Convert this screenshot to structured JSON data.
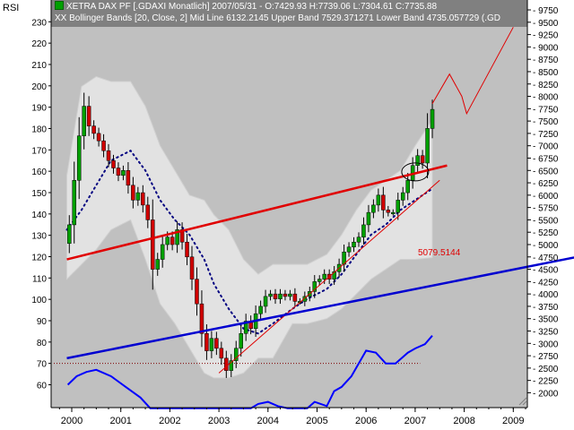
{
  "header": {
    "panel_label": "RSI",
    "title_line": "XETRA DAX PF [.GDAXI  Monatlich] 2007/05/31 - O:7429.93 H:7739.06 L:7304.61 C:7735.88",
    "bollinger_line": "XX Bollinger Bands [20, Close, 2] Mid Line 6132.2145  Upper Band 7529.371271  Lower Band 4735.057729  (.GD"
  },
  "colors": {
    "plot_bg": "#c0c0c0",
    "band_fill": "#e2e2e2",
    "candle_up": "#00a000",
    "candle_down": "#d00000",
    "midline": "#000080",
    "trend_red": "#e00000",
    "trend_blue": "#0000d0",
    "rsi_line": "#0000ff"
  },
  "chart_data": {
    "type": "candlestick",
    "x_ticks": [
      "2000",
      "2001",
      "2002",
      "2003",
      "2004",
      "2005",
      "2006",
      "2007",
      "2008",
      "2009"
    ],
    "right_axis_ticks": [
      2000,
      2250,
      2500,
      2750,
      3000,
      3250,
      3500,
      3750,
      4000,
      4250,
      4500,
      4750,
      5000,
      5250,
      5500,
      5750,
      6000,
      6250,
      6500,
      6750,
      7000,
      7250,
      7500,
      7750,
      8000,
      8250,
      8500,
      8750,
      9000,
      9250,
      9500,
      9750
    ],
    "left_axis_ticks": [
      60,
      70,
      80,
      90,
      100,
      110,
      120,
      130,
      140,
      150,
      160,
      170,
      180,
      190,
      200,
      210,
      220,
      230
    ],
    "price_ylim": [
      1700,
      9950
    ],
    "rsi_ylim": [
      49.3,
      240.2
    ],
    "annotation": "5079.5144",
    "closes": [
      {
        "t": 1999.95,
        "v": 5400
      },
      {
        "t": 2000.05,
        "v": 6300
      },
      {
        "t": 2000.15,
        "v": 7200
      },
      {
        "t": 2000.25,
        "v": 7800
      },
      {
        "t": 2000.35,
        "v": 7400
      },
      {
        "t": 2000.45,
        "v": 7250
      },
      {
        "t": 2000.55,
        "v": 7100
      },
      {
        "t": 2000.65,
        "v": 6900
      },
      {
        "t": 2000.75,
        "v": 6700
      },
      {
        "t": 2000.85,
        "v": 6550
      },
      {
        "t": 2000.95,
        "v": 6400
      },
      {
        "t": 2001.05,
        "v": 6500
      },
      {
        "t": 2001.15,
        "v": 6200
      },
      {
        "t": 2001.25,
        "v": 5900
      },
      {
        "t": 2001.35,
        "v": 6050
      },
      {
        "t": 2001.45,
        "v": 5800
      },
      {
        "t": 2001.55,
        "v": 5500
      },
      {
        "t": 2001.65,
        "v": 4500
      },
      {
        "t": 2001.75,
        "v": 4700
      },
      {
        "t": 2001.85,
        "v": 5000
      },
      {
        "t": 2001.95,
        "v": 5150
      },
      {
        "t": 2002.05,
        "v": 5000
      },
      {
        "t": 2002.15,
        "v": 5300
      },
      {
        "t": 2002.25,
        "v": 5050
      },
      {
        "t": 2002.35,
        "v": 4750
      },
      {
        "t": 2002.45,
        "v": 4300
      },
      {
        "t": 2002.55,
        "v": 3800
      },
      {
        "t": 2002.65,
        "v": 3200
      },
      {
        "t": 2002.75,
        "v": 2850
      },
      {
        "t": 2002.85,
        "v": 3100
      },
      {
        "t": 2002.95,
        "v": 2900
      },
      {
        "t": 2003.05,
        "v": 2700
      },
      {
        "t": 2003.15,
        "v": 2450
      },
      {
        "t": 2003.25,
        "v": 2650
      },
      {
        "t": 2003.35,
        "v": 2900
      },
      {
        "t": 2003.45,
        "v": 3200
      },
      {
        "t": 2003.55,
        "v": 3450
      },
      {
        "t": 2003.65,
        "v": 3300
      },
      {
        "t": 2003.75,
        "v": 3600
      },
      {
        "t": 2003.85,
        "v": 3750
      },
      {
        "t": 2003.95,
        "v": 3950
      },
      {
        "t": 2004.05,
        "v": 4000
      },
      {
        "t": 2004.15,
        "v": 3900
      },
      {
        "t": 2004.25,
        "v": 4000
      },
      {
        "t": 2004.35,
        "v": 3950
      },
      {
        "t": 2004.45,
        "v": 4000
      },
      {
        "t": 2004.55,
        "v": 3850
      },
      {
        "t": 2004.65,
        "v": 3850
      },
      {
        "t": 2004.75,
        "v": 3950
      },
      {
        "t": 2004.85,
        "v": 4050
      },
      {
        "t": 2004.95,
        "v": 4250
      },
      {
        "t": 2005.05,
        "v": 4300
      },
      {
        "t": 2005.15,
        "v": 4400
      },
      {
        "t": 2005.25,
        "v": 4300
      },
      {
        "t": 2005.35,
        "v": 4450
      },
      {
        "t": 2005.45,
        "v": 4600
      },
      {
        "t": 2005.55,
        "v": 4850
      },
      {
        "t": 2005.65,
        "v": 4950
      },
      {
        "t": 2005.75,
        "v": 5050
      },
      {
        "t": 2005.85,
        "v": 5150
      },
      {
        "t": 2005.95,
        "v": 5400
      },
      {
        "t": 2006.05,
        "v": 5650
      },
      {
        "t": 2006.15,
        "v": 5800
      },
      {
        "t": 2006.25,
        "v": 6000
      },
      {
        "t": 2006.35,
        "v": 5700
      },
      {
        "t": 2006.45,
        "v": 5650
      },
      {
        "t": 2006.55,
        "v": 5650
      },
      {
        "t": 2006.65,
        "v": 5900
      },
      {
        "t": 2006.75,
        "v": 6050
      },
      {
        "t": 2006.85,
        "v": 6300
      },
      {
        "t": 2006.95,
        "v": 6600
      },
      {
        "t": 2007.05,
        "v": 6800
      },
      {
        "t": 2007.15,
        "v": 6650
      },
      {
        "t": 2007.25,
        "v": 7350
      },
      {
        "t": 2007.35,
        "v": 7735.88
      }
    ],
    "bollinger": [
      {
        "t": 1999.9,
        "upper": 6400,
        "mid": 5300,
        "lower": 4300
      },
      {
        "t": 2000.2,
        "upper": 8200,
        "mid": 5700,
        "lower": 4600
      },
      {
        "t": 2000.5,
        "upper": 8400,
        "mid": 6200,
        "lower": 4900
      },
      {
        "t": 2000.8,
        "upper": 8300,
        "mid": 6700,
        "lower": 5300
      },
      {
        "t": 2001.2,
        "upper": 8300,
        "mid": 6900,
        "lower": 5500
      },
      {
        "t": 2001.5,
        "upper": 7800,
        "mid": 6500,
        "lower": 4700
      },
      {
        "t": 2001.8,
        "upper": 7000,
        "mid": 5900,
        "lower": 3800
      },
      {
        "t": 2002.1,
        "upper": 6500,
        "mid": 5500,
        "lower": 3400
      },
      {
        "t": 2002.4,
        "upper": 6000,
        "mid": 5200,
        "lower": 2900
      },
      {
        "t": 2002.7,
        "upper": 5900,
        "mid": 4700,
        "lower": 2400
      },
      {
        "t": 2002.9,
        "upper": 5600,
        "mid": 4200,
        "lower": 2300
      },
      {
        "t": 2003.2,
        "upper": 5300,
        "mid": 3700,
        "lower": 2300
      },
      {
        "t": 2003.5,
        "upper": 4700,
        "mid": 3300,
        "lower": 2400
      },
      {
        "t": 2003.8,
        "upper": 4400,
        "mid": 3200,
        "lower": 2700
      },
      {
        "t": 2004.1,
        "upper": 4600,
        "mid": 3400,
        "lower": 2700
      },
      {
        "t": 2004.5,
        "upper": 4600,
        "mid": 3700,
        "lower": 3400
      },
      {
        "t": 2004.8,
        "upper": 4600,
        "mid": 3900,
        "lower": 3400
      },
      {
        "t": 2005.2,
        "upper": 4800,
        "mid": 4100,
        "lower": 3500
      },
      {
        "t": 2005.5,
        "upper": 5200,
        "mid": 4400,
        "lower": 3700
      },
      {
        "t": 2005.8,
        "upper": 5700,
        "mid": 4800,
        "lower": 4000
      },
      {
        "t": 2006.1,
        "upper": 6100,
        "mid": 5200,
        "lower": 4300
      },
      {
        "t": 2006.4,
        "upper": 6300,
        "mid": 5400,
        "lower": 4500
      },
      {
        "t": 2006.7,
        "upper": 6500,
        "mid": 5700,
        "lower": 4700
      },
      {
        "t": 2007.0,
        "upper": 7000,
        "mid": 5900,
        "lower": 4700
      },
      {
        "t": 2007.35,
        "upper": 7530,
        "mid": 6130,
        "lower": 4735
      }
    ],
    "rsi": [
      {
        "t": 1999.92,
        "v": 60
      },
      {
        "t": 2000.1,
        "v": 64
      },
      {
        "t": 2000.3,
        "v": 66
      },
      {
        "t": 2000.5,
        "v": 67
      },
      {
        "t": 2000.8,
        "v": 64
      },
      {
        "t": 2001.1,
        "v": 59
      },
      {
        "t": 2001.4,
        "v": 54
      },
      {
        "t": 2001.6,
        "v": 49
      },
      {
        "t": 2003.65,
        "v": 49
      },
      {
        "t": 2003.8,
        "v": 51
      },
      {
        "t": 2004.0,
        "v": 52
      },
      {
        "t": 2004.2,
        "v": 50
      },
      {
        "t": 2004.4,
        "v": 49
      },
      {
        "t": 2004.8,
        "v": 49
      },
      {
        "t": 2004.95,
        "v": 52
      },
      {
        "t": 2005.2,
        "v": 50
      },
      {
        "t": 2005.35,
        "v": 57
      },
      {
        "t": 2005.5,
        "v": 59
      },
      {
        "t": 2005.7,
        "v": 64
      },
      {
        "t": 2006.0,
        "v": 76
      },
      {
        "t": 2006.2,
        "v": 75
      },
      {
        "t": 2006.4,
        "v": 70
      },
      {
        "t": 2006.6,
        "v": 70
      },
      {
        "t": 2006.85,
        "v": 75
      },
      {
        "t": 2007.0,
        "v": 77
      },
      {
        "t": 2007.2,
        "v": 79
      },
      {
        "t": 2007.35,
        "v": 83
      }
    ],
    "rsi_reference_level": 70,
    "trendlines": [
      {
        "name": "upper-red",
        "color": "red",
        "from": {
          "t": 1999.9,
          "v": 4700
        },
        "to": {
          "t": 2007.65,
          "v": 6600
        }
      },
      {
        "name": "rising-red",
        "color": "red",
        "from": {
          "t": 2003.0,
          "v": 2400
        },
        "to": {
          "t": 2007.5,
          "v": 6300
        }
      },
      {
        "name": "blue-support",
        "color": "blue",
        "from": {
          "t": 1999.9,
          "v": 2700
        },
        "to": {
          "t": 2010.3,
          "v": 4750
        }
      }
    ],
    "projection": [
      {
        "t": 2007.35,
        "v": 7850
      },
      {
        "t": 2007.7,
        "v": 8450
      },
      {
        "t": 2007.95,
        "v": 8000
      },
      {
        "t": 2008.05,
        "v": 7650
      },
      {
        "t": 2009.0,
        "v": 9400
      }
    ],
    "highlight_circle": {
      "t": 2007.0,
      "v": 6470
    }
  }
}
